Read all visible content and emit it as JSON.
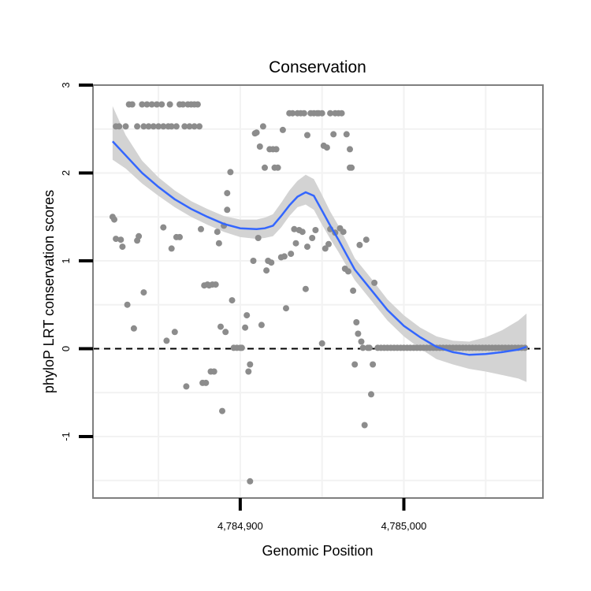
{
  "chart_data": {
    "type": "scatter",
    "title": "Conservation",
    "xlabel": "Genomic Position",
    "ylabel": "phyloP LRT conservation scores",
    "xlim": [
      4784810,
      4785085
    ],
    "ylim": [
      -1.7,
      3.0
    ],
    "x_ticks": [
      4784900,
      4785000
    ],
    "x_tick_labels": [
      "4,784,900",
      "4,785,000"
    ],
    "y_ticks": [
      -1,
      0,
      1,
      2,
      3
    ],
    "y_tick_labels": [
      "-1",
      "0",
      "1",
      "2",
      "3"
    ],
    "grid": true,
    "legend": "none",
    "reference_line": {
      "y": 0,
      "style": "dashed"
    },
    "colors": {
      "points": "#8c8c8c",
      "smooth_line": "#3366ff",
      "confidence_band": "#d3d3d3",
      "grid": "#f2f2f2",
      "panel_border": "#7f7f7f",
      "reference_line": "#000000"
    },
    "points": [
      [
        4784822,
        1.5
      ],
      [
        4784823,
        1.47
      ],
      [
        4784824,
        2.53
      ],
      [
        4784824,
        1.25
      ],
      [
        4784826,
        2.53
      ],
      [
        4784827,
        1.24
      ],
      [
        4784828,
        1.16
      ],
      [
        4784830,
        2.53
      ],
      [
        4784831,
        0.5
      ],
      [
        4784832,
        2.78
      ],
      [
        4784834,
        2.78
      ],
      [
        4784835,
        0.23
      ],
      [
        4784837,
        2.53
      ],
      [
        4784837,
        1.23
      ],
      [
        4784838,
        1.28
      ],
      [
        4784840,
        2.78
      ],
      [
        4784841,
        0.64
      ],
      [
        4784841,
        2.53
      ],
      [
        4784843,
        2.78
      ],
      [
        4784844,
        2.53
      ],
      [
        4784846,
        2.78
      ],
      [
        4784847,
        2.53
      ],
      [
        4784849,
        2.78
      ],
      [
        4784850,
        2.53
      ],
      [
        4784852,
        2.78
      ],
      [
        4784853,
        1.38
      ],
      [
        4784853,
        2.53
      ],
      [
        4784855,
        0.09
      ],
      [
        4784856,
        2.53
      ],
      [
        4784857,
        2.78
      ],
      [
        4784858,
        1.14
      ],
      [
        4784858,
        2.53
      ],
      [
        4784860,
        0.19
      ],
      [
        4784861,
        2.53
      ],
      [
        4784861,
        1.27
      ],
      [
        4784863,
        2.78
      ],
      [
        4784863,
        1.27
      ],
      [
        4784865,
        2.78
      ],
      [
        4784866,
        2.53
      ],
      [
        4784867,
        -0.43
      ],
      [
        4784868,
        2.78
      ],
      [
        4784869,
        2.53
      ],
      [
        4784870,
        2.78
      ],
      [
        4784872,
        2.53
      ],
      [
        4784872,
        2.78
      ],
      [
        4784874,
        2.78
      ],
      [
        4784875,
        2.53
      ],
      [
        4784876,
        1.36
      ],
      [
        4784877,
        -0.39
      ],
      [
        4784878,
        0.72
      ],
      [
        4784879,
        -0.39
      ],
      [
        4784880,
        0.73
      ],
      [
        4784881,
        0.72
      ],
      [
        4784882,
        -0.26
      ],
      [
        4784883,
        0.73
      ],
      [
        4784884,
        -0.26
      ],
      [
        4784885,
        0.73
      ],
      [
        4784886,
        1.33
      ],
      [
        4784887,
        1.2
      ],
      [
        4784888,
        0.25
      ],
      [
        4784889,
        -0.71
      ],
      [
        4784890,
        1.4
      ],
      [
        4784891,
        0.19
      ],
      [
        4784892,
        1.77
      ],
      [
        4784892,
        1.58
      ],
      [
        4784894,
        2.01
      ],
      [
        4784895,
        0.55
      ],
      [
        4784896,
        0.01
      ],
      [
        4784898,
        0.01
      ],
      [
        4784900,
        0.01
      ],
      [
        4784901,
        0.01
      ],
      [
        4784903,
        0.24
      ],
      [
        4784904,
        0.38
      ],
      [
        4784905,
        -0.26
      ],
      [
        4784906,
        -0.18
      ],
      [
        4784906,
        -1.51
      ],
      [
        4784908,
        1.0
      ],
      [
        4784909,
        2.45
      ],
      [
        4784910,
        2.46
      ],
      [
        4784911,
        1.26
      ],
      [
        4784912,
        2.3
      ],
      [
        4784913,
        0.27
      ],
      [
        4784914,
        2.53
      ],
      [
        4784915,
        2.06
      ],
      [
        4784916,
        0.89
      ],
      [
        4784917,
        1.0
      ],
      [
        4784918,
        2.27
      ],
      [
        4784919,
        0.98
      ],
      [
        4784920,
        2.27
      ],
      [
        4784921,
        2.06
      ],
      [
        4784922,
        2.27
      ],
      [
        4784923,
        2.06
      ],
      [
        4784925,
        1.04
      ],
      [
        4784926,
        2.49
      ],
      [
        4784927,
        1.05
      ],
      [
        4784928,
        0.46
      ],
      [
        4784930,
        2.68
      ],
      [
        4784931,
        1.08
      ],
      [
        4784932,
        2.68
      ],
      [
        4784933,
        1.36
      ],
      [
        4784934,
        1.2
      ],
      [
        4784935,
        2.68
      ],
      [
        4784936,
        1.35
      ],
      [
        4784937,
        2.68
      ],
      [
        4784938,
        1.33
      ],
      [
        4784939,
        2.68
      ],
      [
        4784940,
        0.68
      ],
      [
        4784941,
        2.43
      ],
      [
        4784941,
        1.16
      ],
      [
        4784943,
        2.68
      ],
      [
        4784944,
        1.26
      ],
      [
        4784945,
        2.68
      ],
      [
        4784946,
        1.35
      ],
      [
        4784947,
        2.68
      ],
      [
        4784948,
        2.68
      ],
      [
        4784950,
        0.06
      ],
      [
        4784950,
        2.68
      ],
      [
        4784951,
        2.31
      ],
      [
        4784952,
        1.14
      ],
      [
        4784953,
        2.29
      ],
      [
        4784954,
        1.19
      ],
      [
        4784955,
        2.68
      ],
      [
        4784955,
        1.36
      ],
      [
        4784957,
        2.44
      ],
      [
        4784958,
        1.32
      ],
      [
        4784958,
        2.68
      ],
      [
        4784960,
        2.68
      ],
      [
        4784961,
        1.37
      ],
      [
        4784962,
        2.68
      ],
      [
        4784963,
        1.33
      ],
      [
        4784964,
        0.91
      ],
      [
        4784965,
        2.44
      ],
      [
        4784966,
        0.88
      ],
      [
        4784967,
        2.27
      ],
      [
        4784967,
        2.06
      ],
      [
        4784968,
        2.06
      ],
      [
        4784969,
        0.66
      ],
      [
        4784970,
        -0.18
      ],
      [
        4784971,
        0.3
      ],
      [
        4784972,
        0.17
      ],
      [
        4784973,
        1.18
      ],
      [
        4784974,
        0.08
      ],
      [
        4784975,
        0.01
      ],
      [
        4784976,
        -0.87
      ],
      [
        4784977,
        1.24
      ],
      [
        4784978,
        0.01
      ],
      [
        4784979,
        0.01
      ],
      [
        4784980,
        -0.52
      ],
      [
        4784981,
        -0.18
      ],
      [
        4784982,
        0.75
      ],
      [
        4784984,
        0.01
      ],
      [
        4784986,
        0.01
      ],
      [
        4784988,
        0.01
      ],
      [
        4784990,
        0.01
      ],
      [
        4784992,
        0.01
      ],
      [
        4784994,
        0.01
      ],
      [
        4784996,
        0.01
      ],
      [
        4784998,
        0.01
      ],
      [
        4785000,
        0.01
      ],
      [
        4785002,
        0.01
      ],
      [
        4785004,
        0.01
      ],
      [
        4785006,
        0.01
      ],
      [
        4785008,
        0.01
      ],
      [
        4785010,
        0.01
      ],
      [
        4785012,
        0.01
      ],
      [
        4785014,
        0.01
      ],
      [
        4785016,
        0.01
      ],
      [
        4785018,
        0.01
      ],
      [
        4785020,
        0.01
      ],
      [
        4785022,
        0.01
      ],
      [
        4785024,
        0.01
      ],
      [
        4785026,
        0.01
      ],
      [
        4785028,
        0.01
      ],
      [
        4785030,
        0.01
      ],
      [
        4785032,
        0.01
      ],
      [
        4785034,
        0.01
      ],
      [
        4785036,
        0.01
      ],
      [
        4785038,
        0.01
      ],
      [
        4785040,
        0.01
      ],
      [
        4785042,
        0.01
      ],
      [
        4785044,
        0.01
      ],
      [
        4785046,
        0.01
      ],
      [
        4785048,
        0.01
      ],
      [
        4785050,
        0.01
      ],
      [
        4785052,
        0.01
      ],
      [
        4785054,
        0.01
      ],
      [
        4785056,
        0.01
      ],
      [
        4785058,
        0.01
      ],
      [
        4785060,
        0.01
      ],
      [
        4785062,
        0.01
      ],
      [
        4785064,
        0.01
      ],
      [
        4785066,
        0.01
      ],
      [
        4785068,
        0.01
      ],
      [
        4785070,
        0.01
      ],
      [
        4785072,
        0.01
      ],
      [
        4785074,
        0.01
      ]
    ],
    "smooth": {
      "x": [
        4784822,
        4784830,
        4784840,
        4784850,
        4784860,
        4784870,
        4784880,
        4784890,
        4784900,
        4784910,
        4784915,
        4784920,
        4784925,
        4784930,
        4784935,
        4784940,
        4784945,
        4784950,
        4784955,
        4784960,
        4784965,
        4784970,
        4784980,
        4784990,
        4785000,
        4785010,
        4785020,
        4785030,
        4785040,
        4785050,
        4785060,
        4785070,
        4785075
      ],
      "y": [
        2.36,
        2.2,
        2.0,
        1.84,
        1.7,
        1.59,
        1.5,
        1.42,
        1.37,
        1.36,
        1.37,
        1.4,
        1.51,
        1.63,
        1.73,
        1.78,
        1.74,
        1.57,
        1.4,
        1.24,
        1.07,
        0.9,
        0.67,
        0.44,
        0.26,
        0.13,
        0.02,
        -0.04,
        -0.07,
        -0.06,
        -0.04,
        -0.01,
        0.02
      ],
      "lower": [
        2.15,
        2.05,
        1.88,
        1.74,
        1.61,
        1.5,
        1.41,
        1.33,
        1.27,
        1.25,
        1.26,
        1.28,
        1.38,
        1.51,
        1.61,
        1.64,
        1.58,
        1.41,
        1.25,
        1.1,
        0.94,
        0.78,
        0.55,
        0.32,
        0.14,
        0.0,
        -0.12,
        -0.18,
        -0.23,
        -0.26,
        -0.3,
        -0.34,
        -0.38
      ],
      "upper": [
        2.76,
        2.43,
        2.14,
        1.95,
        1.8,
        1.68,
        1.59,
        1.51,
        1.47,
        1.47,
        1.49,
        1.53,
        1.66,
        1.8,
        1.91,
        1.98,
        1.93,
        1.75,
        1.56,
        1.4,
        1.22,
        1.03,
        0.8,
        0.56,
        0.38,
        0.24,
        0.14,
        0.09,
        0.08,
        0.13,
        0.21,
        0.32,
        0.4
      ]
    }
  }
}
